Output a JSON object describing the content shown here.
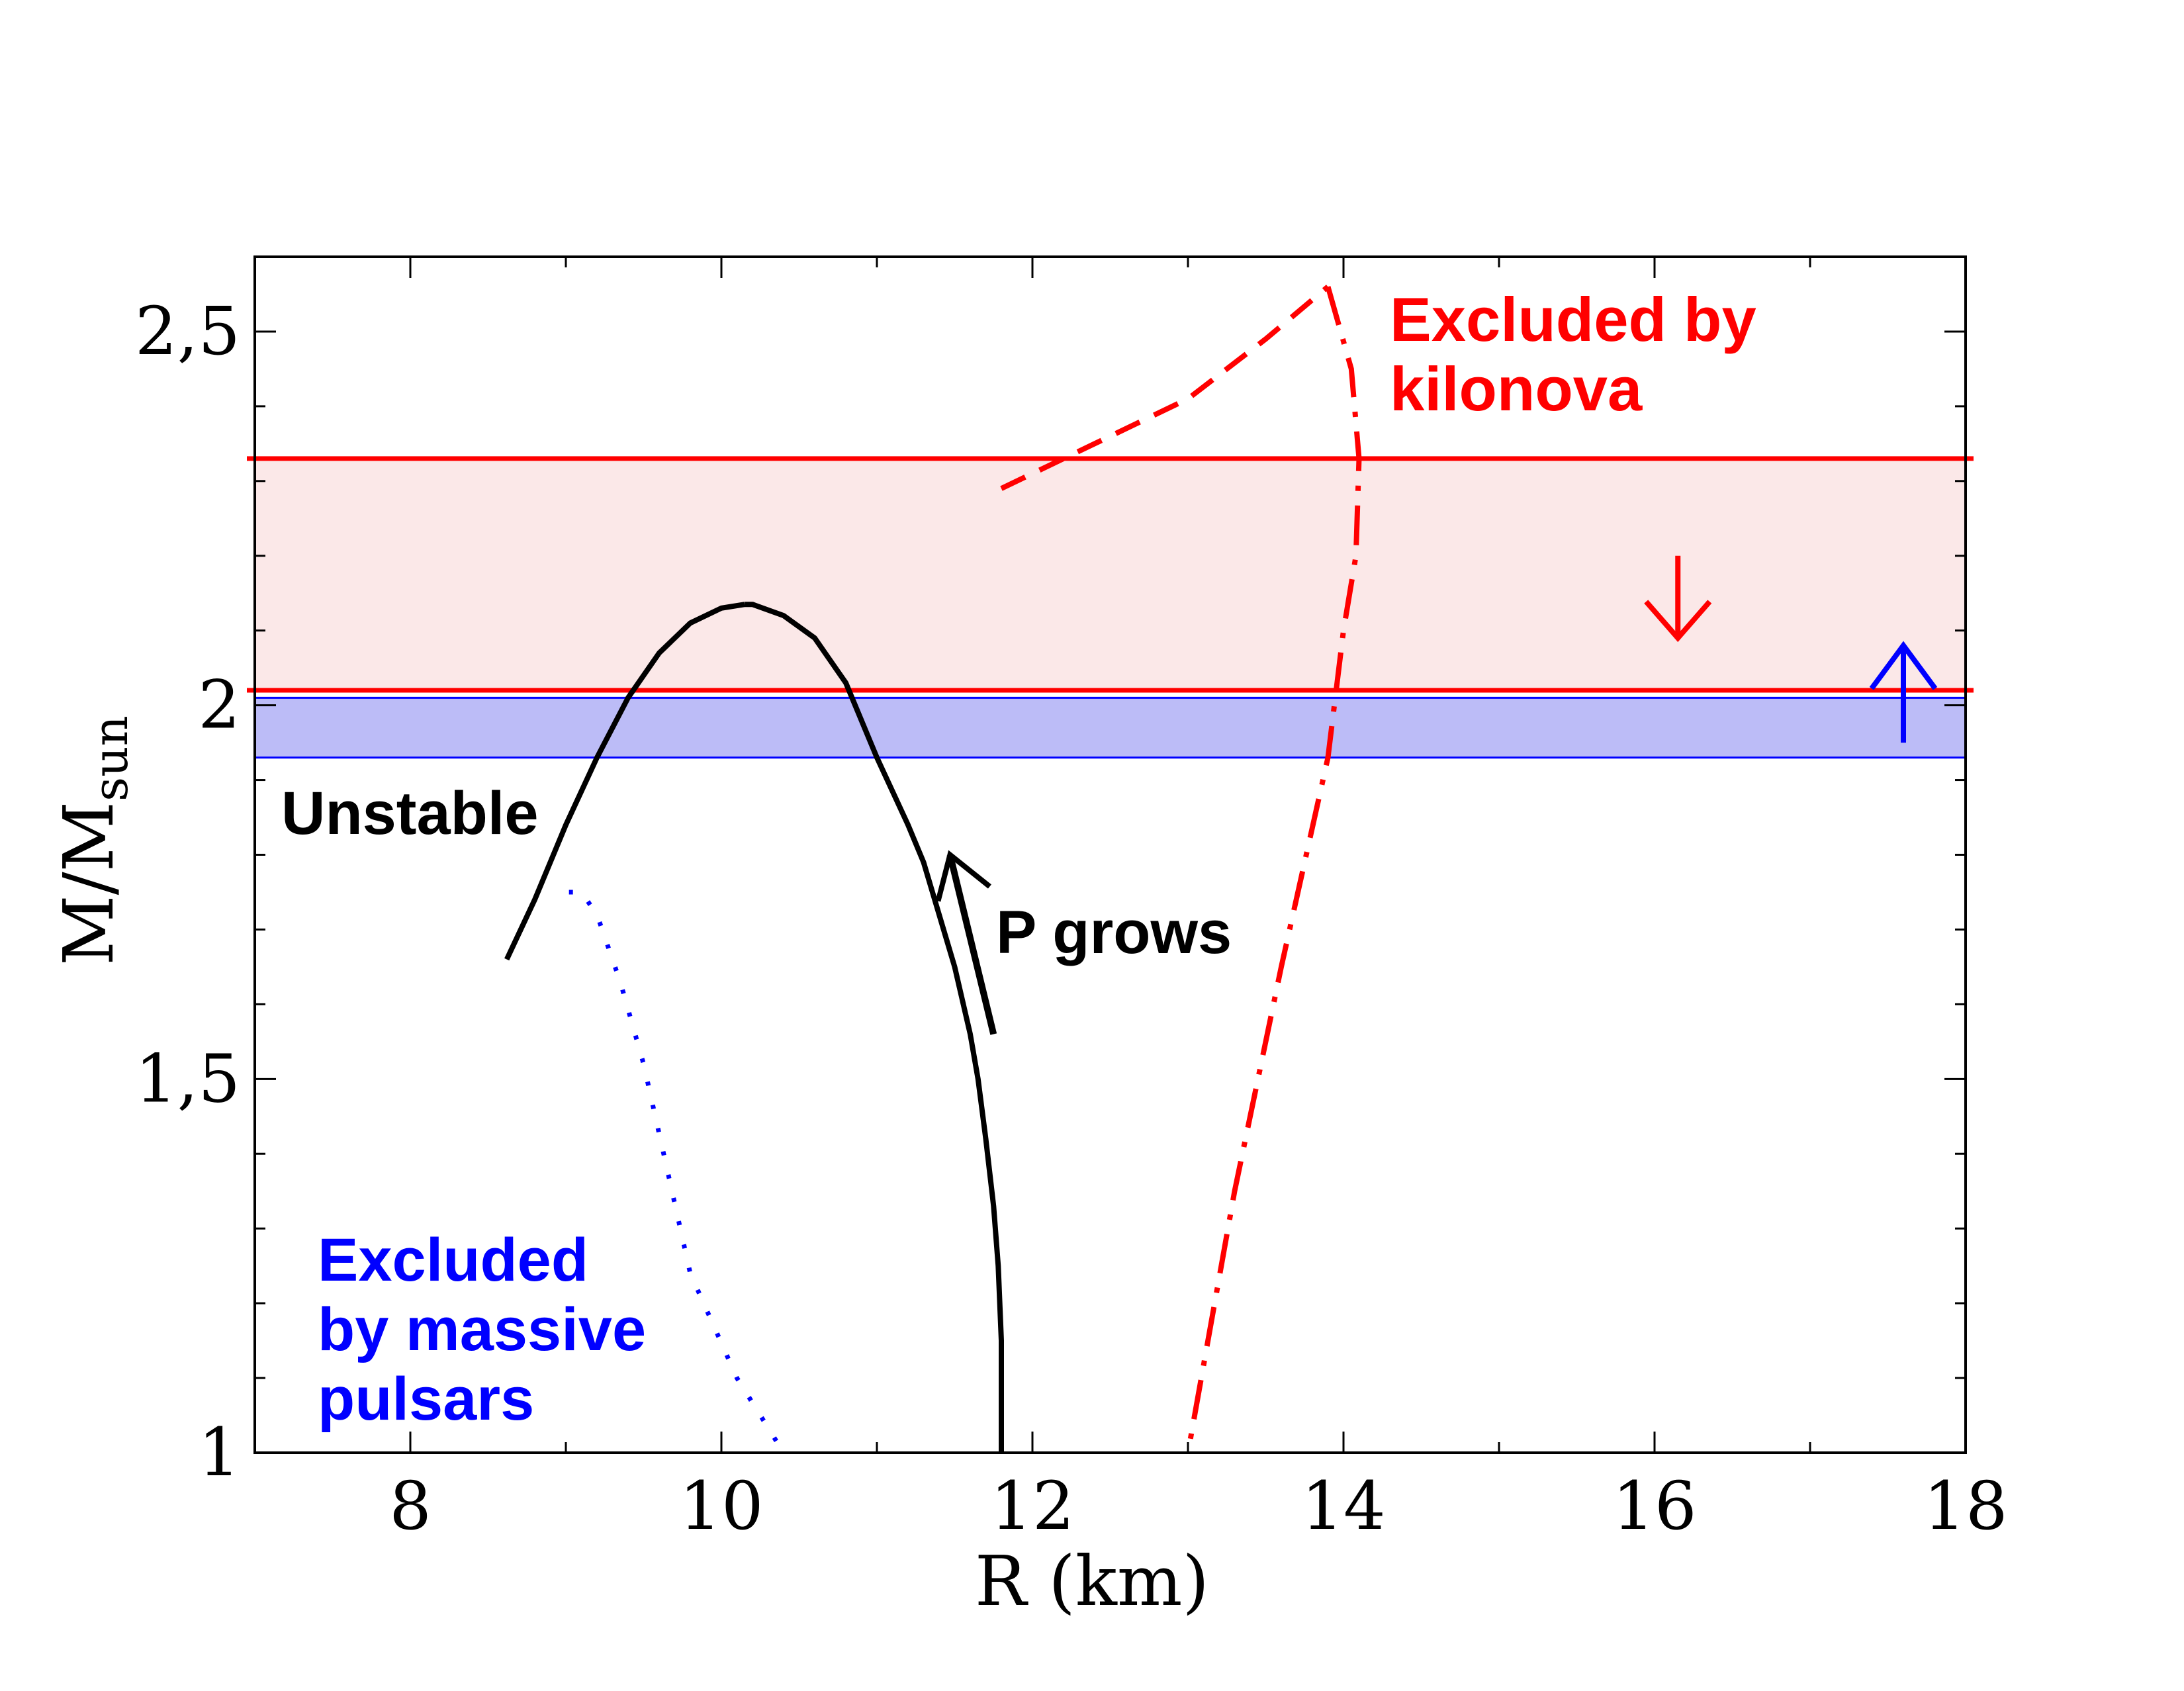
{
  "chart_data": {
    "type": "line",
    "xlabel": "R (km)",
    "ylabel_main": "M/M",
    "ylabel_sub": "sun",
    "xlim": [
      7,
      18
    ],
    "ylim": [
      1,
      2.6
    ],
    "xticks": [
      8,
      10,
      12,
      14,
      16,
      18
    ],
    "xtick_labels": [
      "8",
      "10",
      "12",
      "14",
      "16",
      "18"
    ],
    "yticks": [
      1,
      1.5,
      2,
      2.5
    ],
    "ytick_labels": [
      "1",
      "1,5",
      "2",
      "2,5"
    ],
    "bands": [
      {
        "name": "kilonova-band",
        "y0": 2.02,
        "y1": 2.33,
        "fill": "#fbe8e8",
        "edge": "#ff0000"
      },
      {
        "name": "pulsar-band",
        "y0": 1.93,
        "y1": 2.01,
        "fill": "#bcbcf7",
        "edge": "#0000ff"
      }
    ],
    "series": [
      {
        "name": "stable-branch",
        "color": "#000000",
        "style": "solid",
        "x": [
          11.8,
          11.8,
          11.78,
          11.75,
          11.7,
          11.65,
          11.6,
          11.5,
          11.4,
          11.3,
          11.2,
          11.0,
          10.8,
          10.6,
          10.4,
          10.2,
          10.15
        ],
        "y": [
          1.0,
          1.15,
          1.25,
          1.33,
          1.42,
          1.5,
          1.56,
          1.65,
          1.72,
          1.79,
          1.84,
          1.93,
          2.03,
          2.09,
          2.12,
          2.135,
          2.135
        ]
      },
      {
        "name": "unstable-branch",
        "color": "#000000",
        "style": "solid",
        "x": [
          10.15,
          10.0,
          9.8,
          9.6,
          9.4,
          9.2,
          9.0,
          8.8,
          8.62
        ],
        "y": [
          2.135,
          2.13,
          2.11,
          2.07,
          2.01,
          1.93,
          1.84,
          1.74,
          1.66
        ]
      },
      {
        "name": "kilonova-upper-dashed",
        "color": "#ff0000",
        "style": "dashed",
        "x": [
          11.8,
          12.5,
          13.0,
          13.5,
          13.9
        ],
        "y": [
          2.29,
          2.36,
          2.41,
          2.49,
          2.56
        ]
      },
      {
        "name": "kilonova-dashdot",
        "color": "#ff0000",
        "style": "dashdot",
        "x": [
          13.9,
          14.05,
          14.1,
          14.08,
          14.0,
          13.9,
          13.6,
          13.3,
          13.0
        ],
        "y": [
          2.56,
          2.45,
          2.33,
          2.2,
          2.1,
          1.93,
          1.65,
          1.35,
          1.0
        ]
      },
      {
        "name": "pulsar-dotted",
        "color": "#0000ff",
        "style": "dotted",
        "x": [
          9.02,
          9.1,
          9.2,
          9.35,
          9.5,
          9.65,
          9.8,
          9.95,
          10.1,
          10.25,
          10.4
        ],
        "y": [
          1.75,
          1.75,
          1.72,
          1.63,
          1.52,
          1.38,
          1.24,
          1.17,
          1.1,
          1.05,
          1.0
        ]
      }
    ],
    "annotations": {
      "kilonova": [
        "Excluded by",
        "kilonova"
      ],
      "unstable": "Unstable",
      "p_grows": "P grows",
      "pulsars": [
        "Excluded",
        "by massive",
        "pulsars"
      ]
    },
    "colors": {
      "red": "#ff0000",
      "blue": "#0000ff",
      "black": "#000000"
    }
  }
}
